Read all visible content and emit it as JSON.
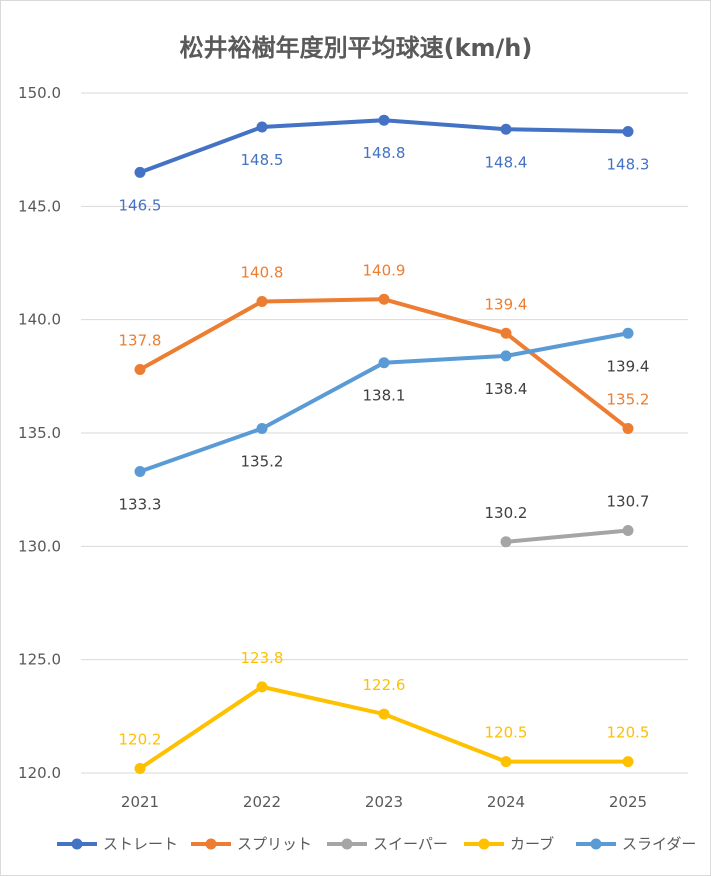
{
  "chart_data": {
    "type": "line",
    "title": "松井裕樹年度別平均球速(km/h)",
    "xlabel": "",
    "ylabel": "",
    "categories": [
      "2021",
      "2022",
      "2023",
      "2024",
      "2025"
    ],
    "ylim": [
      120,
      150
    ],
    "yticks": [
      "120.0",
      "125.0",
      "130.0",
      "135.0",
      "140.0",
      "145.0",
      "150.0"
    ],
    "grid": true,
    "legend_position": "bottom",
    "series": [
      {
        "name": "ストレート",
        "color": "#4472C4",
        "values": [
          146.5,
          148.5,
          148.8,
          148.4,
          148.3
        ],
        "labels": [
          "146.5",
          "148.5",
          "148.8",
          "148.4",
          "148.3"
        ],
        "label_color": "#4472C4",
        "label_pos": [
          "below",
          "below",
          "below",
          "below",
          "below"
        ]
      },
      {
        "name": "スプリット",
        "color": "#ED7D31",
        "values": [
          137.8,
          140.8,
          140.9,
          139.4,
          135.2
        ],
        "labels": [
          "137.8",
          "140.8",
          "140.9",
          "139.4",
          "135.2"
        ],
        "label_color": "#ED7D31",
        "label_pos": [
          "above",
          "above",
          "above",
          "above",
          "above"
        ]
      },
      {
        "name": "スイーパー",
        "color": "#A5A5A5",
        "values": [
          null,
          null,
          null,
          130.2,
          130.7
        ],
        "labels": [
          "",
          "",
          "",
          "130.2",
          "130.7"
        ],
        "label_color": "#404040",
        "label_pos": [
          "above",
          "above",
          "above",
          "above",
          "above"
        ]
      },
      {
        "name": "カーブ",
        "color": "#FFC000",
        "values": [
          120.2,
          123.8,
          122.6,
          120.5,
          120.5
        ],
        "labels": [
          "120.2",
          "123.8",
          "122.6",
          "120.5",
          "120.5"
        ],
        "label_color": "#FFC000",
        "label_pos": [
          "above",
          "above",
          "above",
          "above",
          "above"
        ]
      },
      {
        "name": "スライダー",
        "color": "#5B9BD5",
        "values": [
          133.3,
          135.2,
          138.1,
          138.4,
          139.4
        ],
        "labels": [
          "133.3",
          "135.2",
          "138.1",
          "138.4",
          "139.4"
        ],
        "label_color": "#404040",
        "label_pos": [
          "below",
          "below",
          "below",
          "below",
          "below"
        ]
      }
    ]
  }
}
